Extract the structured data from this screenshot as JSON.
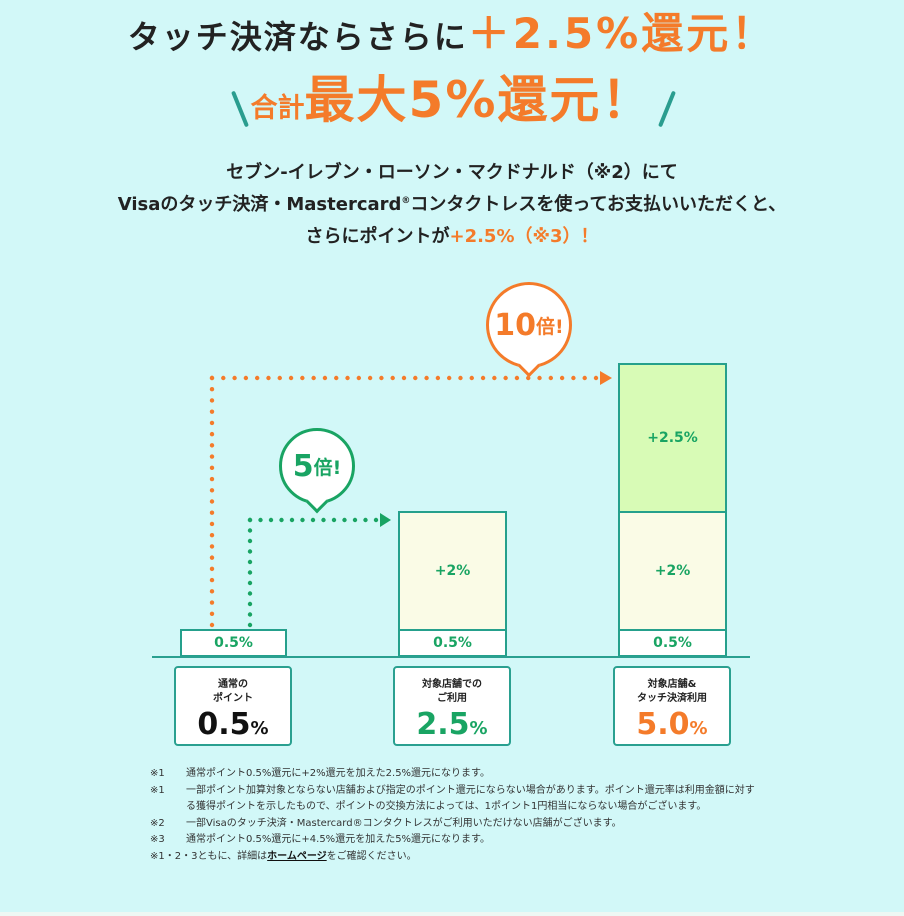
{
  "headline": {
    "line1_main": "タッチ決済ならさらに",
    "line1_accent": "＋2.5%還元！",
    "line2_small": "合計",
    "line2_big": "最大5%還元！"
  },
  "description": {
    "line1": "セブン-イレブン・ローソン・マクドナルド（※2）にて",
    "line2_a": "Visaのタッチ決済・Mastercard",
    "line2_reg": "®",
    "line2_b": "コンタクトレスを使ってお支払いいただくと、",
    "line3_a": "さらにポイントが",
    "line3_accent": "+2.5%（※3）！"
  },
  "chart": {
    "bubble_5x_num": "5",
    "bubble_5x_unit": "倍!",
    "bubble_10x_num": "10",
    "bubble_10x_unit": "倍!",
    "col1_base": "0.5%",
    "col2_base": "0.5%",
    "col2_extra": "+2%",
    "col3_base": "0.5%",
    "col3_extra": "+2%",
    "col3_touch": "+2.5%"
  },
  "cards": [
    {
      "label_1": "通常の",
      "label_2": "ポイント",
      "value": "0.5",
      "unit": "%"
    },
    {
      "label_1": "対象店舗での",
      "label_2": "ご利用",
      "value": "2.5",
      "unit": "%"
    },
    {
      "label_1": "対象店舗&",
      "label_2": "タッチ決済利用",
      "value": "5.0",
      "unit": "%"
    }
  ],
  "notes": [
    {
      "mark": "※1",
      "text": "通常ポイント0.5%還元に+2%還元を加えた2.5%還元になります。"
    },
    {
      "mark": "※1",
      "text": "一部ポイント加算対象とならない店舗および指定のポイント還元にならない場合があります。ポイント還元率は利用金額に対する獲得ポイントを示したもので、ポイントの交換方法によっては、1ポイント1円相当にならない場合がございます。"
    },
    {
      "mark": "※2",
      "text": "一部Visaのタッチ決済・Mastercard®コンタクトレスがご利用いただけない店舗がございます。"
    },
    {
      "mark": "※3",
      "text": "通常ポイント0.5%還元に+4.5%還元を加えた5%還元になります。"
    }
  ],
  "note_last": {
    "prefix": "※1・2・3ともに、詳細は",
    "link": "ホームページ",
    "suffix": "をご確認ください。"
  },
  "colors": {
    "orange": "#f47b2a",
    "green": "#19a463",
    "teal": "#2aa090",
    "background": "#d2f8f8"
  }
}
